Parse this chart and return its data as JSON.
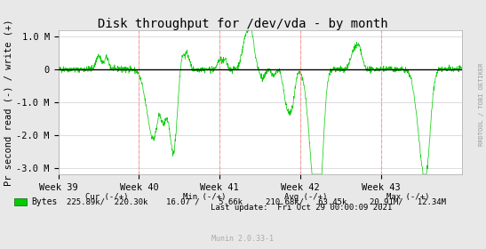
{
  "title": "Disk throughput for /dev/vda - by month",
  "ylabel": "Pr second read (-) / write (+)",
  "right_label": "RRDTOOL / TOBI OETIKER",
  "bg_color": "#e8e8e8",
  "plot_bg_color": "#ffffff",
  "grid_color_major": "#aaaaaa",
  "line_color": "#00cc00",
  "zero_line_color": "#000000",
  "dashed_line_color": "#ff9999",
  "x_tick_labels": [
    "Week 39",
    "Week 40",
    "Week 41",
    "Week 42",
    "Week 43"
  ],
  "ylim": [
    -3200000,
    1200000
  ],
  "yticks": [
    -3000000,
    -2000000,
    -1000000,
    0,
    1000000
  ],
  "ytick_labels": [
    "-3.0 M",
    "-2.0 M",
    "-1.0 M",
    "0",
    "1.0 M"
  ],
  "legend_color": "#00cc00",
  "legend_label": "Bytes",
  "cur_text": "Cur (-/+)",
  "cur_val": "225.89k/  220.30k",
  "min_text": "Min (-/+)",
  "min_val": "16.07 /    5.66k",
  "avg_text": "Avg (-/+)",
  "avg_val": "210.68k/   63.45k",
  "max_text": "Max (-/+)",
  "max_val": "20.91M/   12.34M",
  "last_update": "Last update:  Fri Oct 29 00:00:09 2021",
  "munin_version": "Munin 2.0.33-1",
  "font_size": 7.5,
  "title_font_size": 10
}
